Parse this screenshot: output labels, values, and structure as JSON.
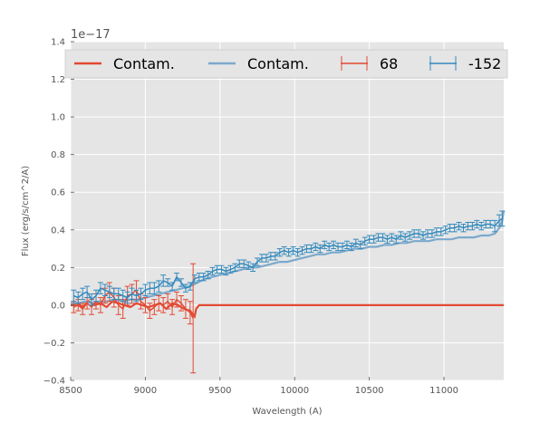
{
  "chart_data": {
    "type": "line",
    "title": "",
    "xlabel": "Wavelength (A)",
    "ylabel": "Flux (erg/s/cm^2/A)",
    "y_offset_text": "1e−17",
    "xlim": [
      8500,
      11400
    ],
    "ylim": [
      -0.4,
      1.4
    ],
    "xticks": [
      8500,
      9000,
      9500,
      10000,
      10500,
      11000
    ],
    "xtick_labels": [
      "8500",
      "9000",
      "9500",
      "10000",
      "10500",
      "11000"
    ],
    "yticks": [
      -0.4,
      -0.2,
      0.0,
      0.2,
      0.4,
      0.6,
      0.8,
      1.0,
      1.2,
      1.4
    ],
    "ytick_labels": [
      "−0.4",
      "−0.2",
      "0.0",
      "0.2",
      "0.4",
      "0.6",
      "0.8",
      "1.0",
      "1.2",
      "1.4"
    ],
    "grid": true,
    "legend_position": "top",
    "series": [
      {
        "name": "Contam.",
        "kind": "line",
        "color": "#E24A33",
        "x": [
          8500,
          8520,
          8550,
          8580,
          8620,
          8660,
          8700,
          8740,
          8780,
          8820,
          8860,
          8900,
          8940,
          8980,
          9020,
          9060,
          9100,
          9140,
          9180,
          9220,
          9260,
          9300,
          9330,
          9340,
          9360,
          11400
        ],
        "y": [
          0.0,
          0.0,
          0.01,
          -0.01,
          0.02,
          0.0,
          0.01,
          -0.01,
          0.02,
          0.01,
          0.0,
          -0.01,
          0.01,
          0.0,
          -0.01,
          0.0,
          0.01,
          -0.02,
          0.01,
          0.0,
          -0.02,
          -0.03,
          -0.06,
          -0.02,
          0.0,
          0.0
        ]
      },
      {
        "name": "Contam.",
        "kind": "line",
        "color": "#6A9FC9",
        "x": [
          8500,
          8550,
          8600,
          8650,
          8700,
          8750,
          8800,
          8850,
          8900,
          8950,
          9000,
          9050,
          9100,
          9150,
          9200,
          9250,
          9300,
          9350,
          9400,
          9450,
          9500,
          9550,
          9600,
          9650,
          9700,
          9750,
          9800,
          9850,
          9900,
          9950,
          10000,
          10050,
          10100,
          10150,
          10200,
          10250,
          10300,
          10350,
          10400,
          10450,
          10500,
          10550,
          10600,
          10650,
          10700,
          10750,
          10800,
          10850,
          10900,
          10950,
          11000,
          11050,
          11100,
          11150,
          11200,
          11250,
          11300,
          11340,
          11370,
          11390,
          11400
        ],
        "y": [
          0.01,
          0.01,
          0.02,
          0.01,
          0.02,
          0.02,
          0.03,
          0.02,
          0.03,
          0.03,
          0.04,
          0.05,
          0.06,
          0.07,
          0.08,
          0.09,
          0.1,
          0.12,
          0.14,
          0.15,
          0.16,
          0.17,
          0.18,
          0.19,
          0.2,
          0.2,
          0.21,
          0.22,
          0.23,
          0.23,
          0.24,
          0.25,
          0.26,
          0.27,
          0.27,
          0.28,
          0.28,
          0.29,
          0.3,
          0.3,
          0.31,
          0.31,
          0.32,
          0.32,
          0.33,
          0.33,
          0.34,
          0.34,
          0.34,
          0.35,
          0.35,
          0.35,
          0.36,
          0.36,
          0.36,
          0.37,
          0.37,
          0.38,
          0.41,
          0.45,
          0.5
        ]
      },
      {
        "name": "68",
        "kind": "errorbar",
        "color": "#E24A33",
        "x": [
          8520,
          8550,
          8580,
          8610,
          8640,
          8670,
          8700,
          8730,
          8760,
          8790,
          8820,
          8850,
          8880,
          8910,
          8940,
          8970,
          9000,
          9030,
          9060,
          9090,
          9120,
          9150,
          9180,
          9210,
          9240,
          9270,
          9300,
          9320
        ],
        "y": [
          -0.01,
          0.0,
          -0.02,
          0.01,
          -0.01,
          0.02,
          0.0,
          0.05,
          0.07,
          0.04,
          0.0,
          -0.02,
          0.05,
          0.06,
          0.08,
          0.02,
          0.0,
          -0.03,
          -0.01,
          0.01,
          0.0,
          0.02,
          -0.01,
          0.03,
          0.01,
          -0.02,
          -0.04,
          -0.07
        ],
        "yerr": [
          0.03,
          0.03,
          0.03,
          0.03,
          0.04,
          0.04,
          0.04,
          0.04,
          0.05,
          0.05,
          0.05,
          0.05,
          0.05,
          0.05,
          0.05,
          0.04,
          0.04,
          0.04,
          0.04,
          0.04,
          0.04,
          0.04,
          0.04,
          0.04,
          0.04,
          0.05,
          0.06,
          0.29
        ]
      },
      {
        "name": "-152",
        "kind": "errorbar",
        "color": "#348ABD",
        "x": [
          8520,
          8550,
          8580,
          8610,
          8640,
          8670,
          8700,
          8730,
          8760,
          8790,
          8820,
          8850,
          8880,
          8910,
          8940,
          8970,
          9000,
          9030,
          9060,
          9090,
          9120,
          9150,
          9180,
          9210,
          9240,
          9270,
          9300,
          9330,
          9360,
          9390,
          9420,
          9450,
          9480,
          9510,
          9540,
          9570,
          9600,
          9630,
          9660,
          9690,
          9720,
          9750,
          9780,
          9810,
          9840,
          9870,
          9900,
          9930,
          9960,
          9990,
          10020,
          10050,
          10080,
          10110,
          10140,
          10170,
          10200,
          10230,
          10260,
          10290,
          10320,
          10350,
          10380,
          10410,
          10440,
          10470,
          10500,
          10530,
          10560,
          10590,
          10620,
          10650,
          10680,
          10710,
          10740,
          10770,
          10800,
          10830,
          10860,
          10890,
          10920,
          10950,
          10980,
          11010,
          11040,
          11070,
          11100,
          11130,
          11160,
          11190,
          11220,
          11250,
          11280,
          11310,
          11340,
          11370,
          11390
        ],
        "y": [
          0.05,
          0.04,
          0.06,
          0.07,
          0.03,
          0.05,
          0.09,
          0.08,
          0.07,
          0.06,
          0.06,
          0.05,
          0.04,
          0.06,
          0.05,
          0.06,
          0.08,
          0.09,
          0.09,
          0.1,
          0.13,
          0.12,
          0.1,
          0.15,
          0.12,
          0.09,
          0.1,
          0.14,
          0.15,
          0.15,
          0.16,
          0.18,
          0.19,
          0.19,
          0.18,
          0.19,
          0.2,
          0.22,
          0.22,
          0.21,
          0.2,
          0.23,
          0.25,
          0.25,
          0.26,
          0.26,
          0.28,
          0.29,
          0.28,
          0.29,
          0.28,
          0.29,
          0.3,
          0.3,
          0.31,
          0.3,
          0.32,
          0.31,
          0.32,
          0.31,
          0.31,
          0.32,
          0.31,
          0.33,
          0.32,
          0.34,
          0.35,
          0.35,
          0.36,
          0.36,
          0.35,
          0.36,
          0.35,
          0.37,
          0.36,
          0.37,
          0.38,
          0.38,
          0.37,
          0.38,
          0.38,
          0.39,
          0.39,
          0.4,
          0.41,
          0.41,
          0.42,
          0.41,
          0.42,
          0.42,
          0.43,
          0.42,
          0.43,
          0.43,
          0.42,
          0.45,
          0.46
        ],
        "yerr": [
          0.03,
          0.03,
          0.03,
          0.03,
          0.03,
          0.03,
          0.03,
          0.03,
          0.03,
          0.03,
          0.03,
          0.03,
          0.03,
          0.03,
          0.03,
          0.03,
          0.03,
          0.03,
          0.03,
          0.03,
          0.03,
          0.02,
          0.02,
          0.02,
          0.02,
          0.02,
          0.02,
          0.02,
          0.02,
          0.02,
          0.02,
          0.02,
          0.02,
          0.02,
          0.02,
          0.02,
          0.02,
          0.02,
          0.02,
          0.02,
          0.02,
          0.02,
          0.02,
          0.02,
          0.02,
          0.02,
          0.02,
          0.02,
          0.02,
          0.02,
          0.02,
          0.02,
          0.02,
          0.02,
          0.02,
          0.02,
          0.02,
          0.02,
          0.02,
          0.02,
          0.02,
          0.02,
          0.02,
          0.02,
          0.02,
          0.02,
          0.02,
          0.02,
          0.02,
          0.02,
          0.02,
          0.02,
          0.02,
          0.02,
          0.02,
          0.02,
          0.02,
          0.02,
          0.02,
          0.02,
          0.02,
          0.02,
          0.02,
          0.02,
          0.02,
          0.02,
          0.02,
          0.02,
          0.02,
          0.02,
          0.02,
          0.02,
          0.02,
          0.02,
          0.03,
          0.03,
          0.04
        ]
      }
    ]
  }
}
